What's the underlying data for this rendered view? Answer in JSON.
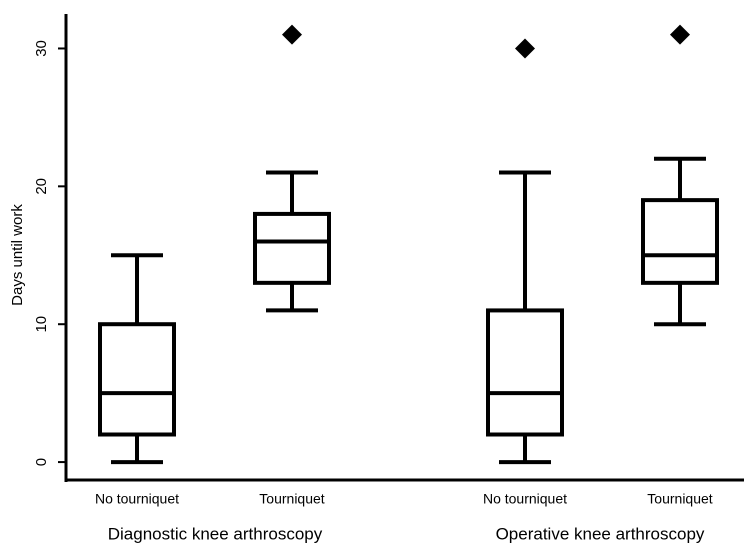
{
  "chart_data": {
    "type": "box",
    "ylabel": "Days until work",
    "groups": [
      "Diagnostic knee arthroscopy",
      "Operative knee arthroscopy"
    ],
    "categories": [
      "No tourniquet",
      "Tourniquet",
      "No tourniquet",
      "Tourniquet"
    ],
    "boxes": [
      {
        "min": 0,
        "q1": 2,
        "median": 5,
        "q3": 10,
        "max": 15,
        "outliers": []
      },
      {
        "min": 11,
        "q1": 13,
        "median": 16,
        "q3": 18,
        "max": 21,
        "outliers": [
          31
        ]
      },
      {
        "min": 0,
        "q1": 2,
        "median": 5,
        "q3": 11,
        "max": 21,
        "outliers": [
          30
        ]
      },
      {
        "min": 10,
        "q1": 13,
        "median": 15,
        "q3": 19,
        "max": 22,
        "outliers": [
          31
        ]
      }
    ],
    "color": "#000000",
    "ylim": [
      -1.3,
      32.5
    ],
    "yticks": [
      0,
      10,
      20,
      30
    ]
  }
}
